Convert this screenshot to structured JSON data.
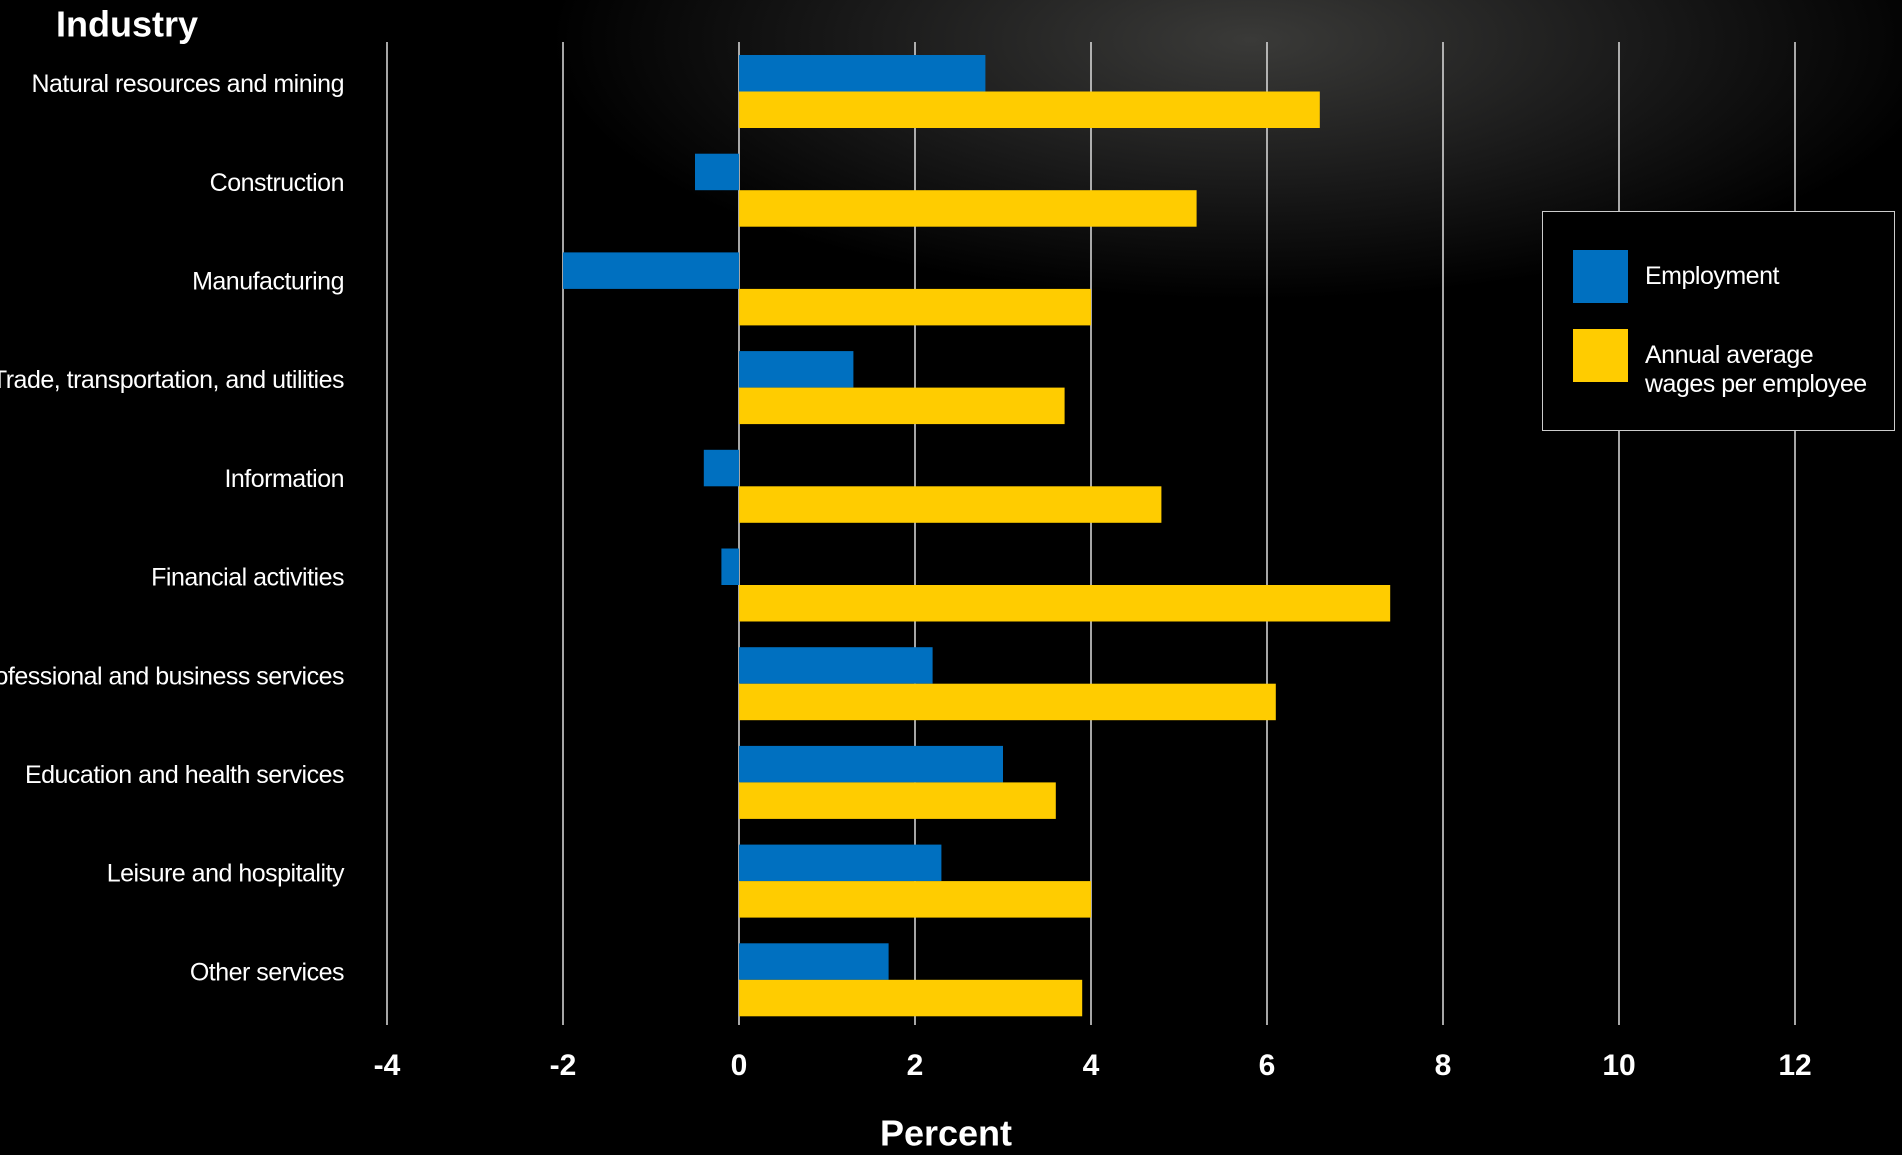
{
  "chart_data": {
    "type": "bar",
    "orientation": "horizontal",
    "y_label": "Industry",
    "x_label": "Percent",
    "categories": [
      "Natural resources and mining",
      "Construction",
      "Manufacturing",
      "Trade, transportation, and utilities",
      "Information",
      "Financial activities",
      "Professional and business services",
      "Education and health services",
      "Leisure and hospitality",
      "Other services"
    ],
    "series": [
      {
        "name": "Employment",
        "color": "#0070c0",
        "values": [
          2.8,
          -0.5,
          -2.0,
          1.3,
          -0.4,
          -0.2,
          2.2,
          3.0,
          2.3,
          1.7
        ]
      },
      {
        "name": "Annual average wages per employee",
        "color": "#ffcc00",
        "values": [
          6.6,
          5.2,
          4.0,
          3.7,
          4.8,
          7.4,
          6.1,
          3.6,
          4.0,
          3.9
        ]
      }
    ],
    "xlim": [
      -4,
      12
    ],
    "xticks": [
      -4,
      -2,
      0,
      2,
      4,
      6,
      8,
      10,
      12
    ],
    "grid": true,
    "legend": "right"
  }
}
